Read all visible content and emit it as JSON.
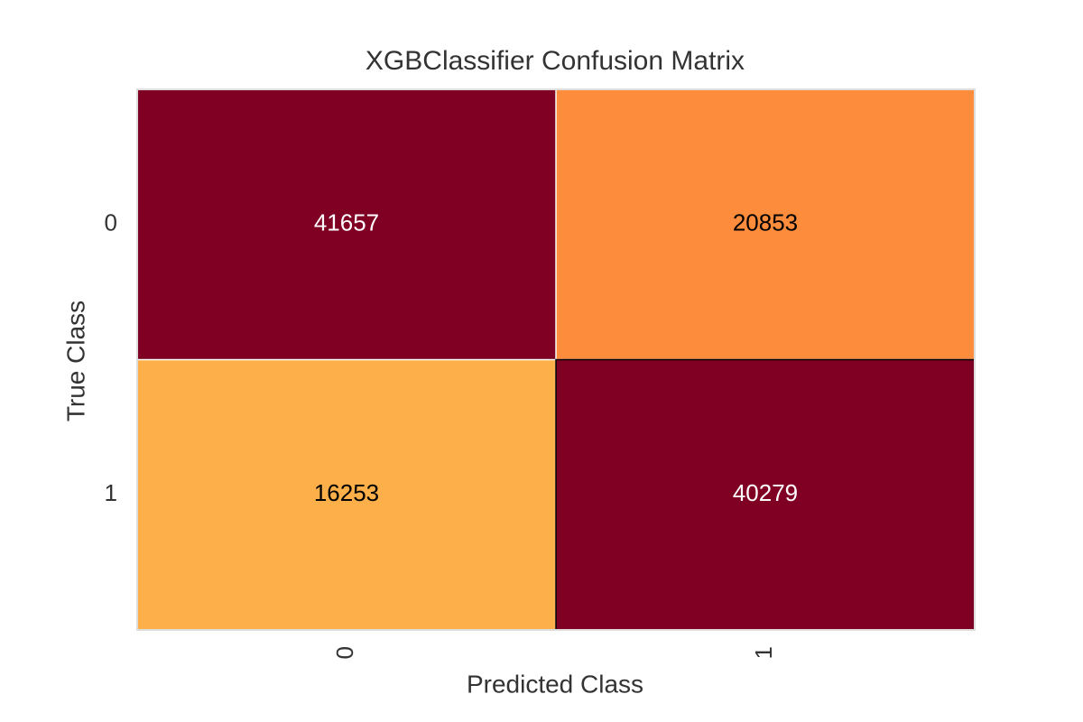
{
  "chart_data": {
    "type": "heatmap",
    "title": "XGBClassifier Confusion Matrix",
    "x_label": "Predicted Class",
    "y_label": "True Class",
    "x_categories": [
      "0",
      "1"
    ],
    "y_categories": [
      "0",
      "1"
    ],
    "values": [
      [
        41657,
        20853
      ],
      [
        16253,
        40279
      ]
    ],
    "colors": [
      [
        "#7f0023",
        "#fd8d3c"
      ],
      [
        "#fdaf4a",
        "#7f0023"
      ]
    ],
    "grid": false
  }
}
